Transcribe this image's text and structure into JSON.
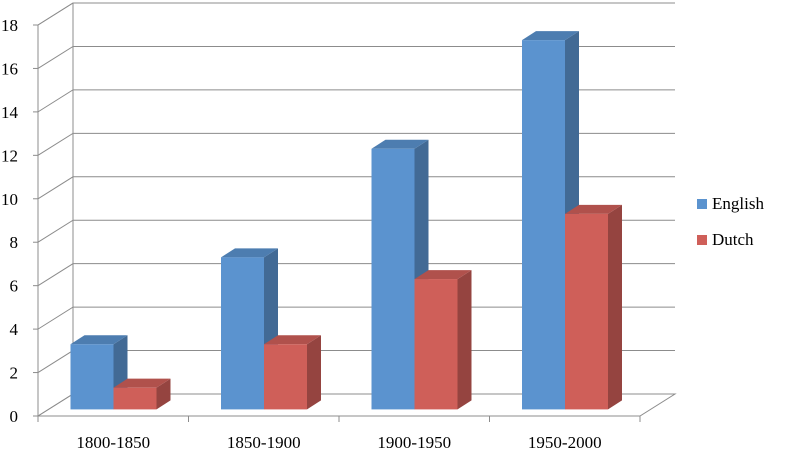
{
  "chart_data": {
    "type": "bar",
    "title": "",
    "xlabel": "",
    "ylabel": "",
    "categories": [
      "1800-1850",
      "1850-1900",
      "1900-1950",
      "1950-2000"
    ],
    "series": [
      {
        "name": "English",
        "values": [
          3,
          7,
          12,
          17
        ],
        "color": "#5b93cf"
      },
      {
        "name": "Dutch",
        "values": [
          1,
          3,
          6,
          9
        ],
        "color": "#cf5f59"
      }
    ],
    "ylim": [
      0,
      18
    ],
    "yticks": [
      0,
      2,
      4,
      6,
      8,
      10,
      12,
      14,
      16,
      18
    ],
    "grid": true,
    "legend": "right",
    "style": "3d-clustered-column"
  }
}
